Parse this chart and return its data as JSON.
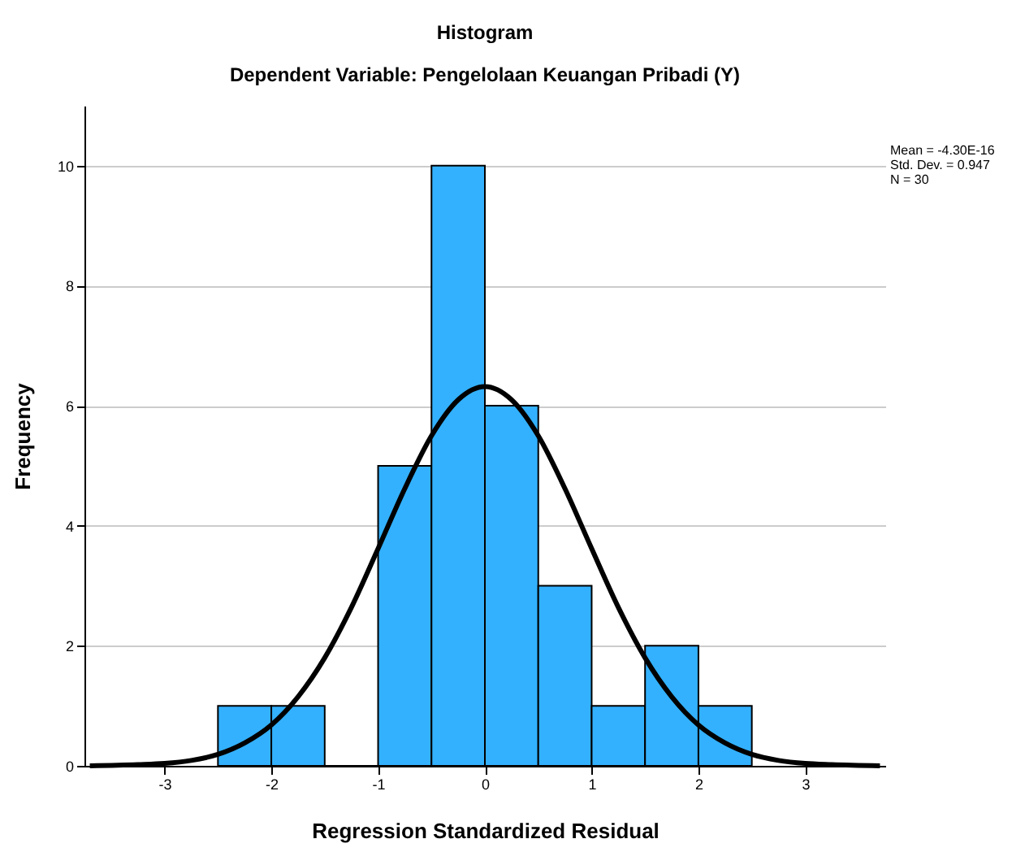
{
  "chart_data": {
    "type": "histogram",
    "title": "Histogram",
    "subtitle": "Dependent Variable: Pengelolaan Keuangan Pribadi (Y)",
    "xlabel": "Regression Standardized Residual",
    "ylabel": "Frequency",
    "bins": [
      -2.5,
      -2.0,
      -1.5,
      -1.0,
      -0.5,
      0.0,
      0.5,
      1.0,
      1.5,
      2.0,
      2.5
    ],
    "values": [
      1,
      1,
      0,
      5,
      10,
      6,
      3,
      1,
      2,
      1
    ],
    "color": "#33b1ff",
    "xlim": [
      -3.75,
      3.75
    ],
    "ylim": [
      0,
      11
    ],
    "xticks": [
      -3,
      -2,
      -1,
      0,
      1,
      2,
      3
    ],
    "yticks": [
      0,
      2,
      4,
      6,
      8,
      10
    ],
    "grid": "y",
    "annotations": [
      "Mean = -4.30E-16",
      "Std. Dev. = 0.947",
      "N = 30"
    ],
    "series": [
      {
        "type": "line",
        "color": "#000000",
        "x": [
          -3.7,
          -3.25,
          -3.0,
          -2.75,
          -2.5,
          -2.25,
          -2.0,
          -1.75,
          -1.5,
          -1.25,
          -1.0,
          -0.75,
          -0.5,
          -0.25,
          0.0,
          0.25,
          0.5,
          0.75,
          1.0,
          1.25,
          1.5,
          1.75,
          2.0,
          2.25,
          2.5,
          2.75,
          3.0,
          3.25,
          3.7
        ],
        "values": [
          0.0,
          0.02,
          0.04,
          0.09,
          0.19,
          0.38,
          0.68,
          1.15,
          1.8,
          2.64,
          3.62,
          4.62,
          5.5,
          6.1,
          6.32,
          6.1,
          5.5,
          4.62,
          3.62,
          2.64,
          1.8,
          1.15,
          0.68,
          0.38,
          0.19,
          0.09,
          0.04,
          0.02,
          0.0
        ]
      }
    ]
  }
}
